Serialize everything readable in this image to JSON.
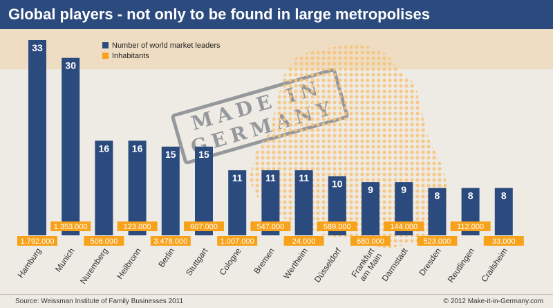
{
  "title": "Global players - not only to be found in large metropolises",
  "stamp": {
    "line1": "MADE IN",
    "line2": "GERMANY"
  },
  "legend": [
    {
      "label": "Number of world market leaders",
      "color": "#2b4a7d"
    },
    {
      "label": "Inhabitants",
      "color": "#f7a21a"
    }
  ],
  "source": "Source: Weissman Institute of Family Businesses 2011",
  "credit": "© 2012 Make-it-in-Germany.com",
  "chart_data": {
    "type": "bar",
    "categories": [
      "Hamburg",
      "Munich",
      "Nuremberg",
      "Heilbronn",
      "Berlin",
      "Stuttgart",
      "Cologne",
      "Bremen",
      "Wertheim",
      "Düsseldorf",
      "Frankfurt am Main",
      "Darmstadt",
      "Dresden",
      "Reutlingen",
      "Crailsheim"
    ],
    "series": [
      {
        "name": "Number of world market leaders",
        "values": [
          33,
          30,
          16,
          16,
          15,
          15,
          11,
          11,
          11,
          10,
          9,
          9,
          8,
          8,
          8
        ]
      },
      {
        "name": "Inhabitants",
        "values": [
          "1.792.000",
          "1.353.000",
          "506.000",
          "123.000",
          "3.478.000",
          "607.000",
          "1.007.000",
          "547.000",
          "24.000",
          "589.000",
          "680.000",
          "144.000",
          "523.000",
          "112.000",
          "33.000"
        ]
      }
    ],
    "ylim": [
      0,
      33
    ]
  }
}
